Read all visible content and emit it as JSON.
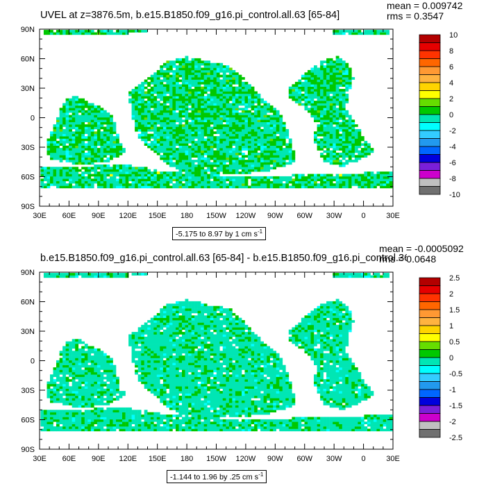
{
  "panels": [
    {
      "title": "UVEL at z=3876.5m, b.e15.B1850.f09_g16.pi_control.all.63 [65-84]",
      "mean_text": "mean = 0.009742",
      "rms_text": "rms = 0.3547",
      "range_text": "-5.175 to 8.97 by 1 cm s",
      "range_exp": "-1"
    },
    {
      "title": "b.e15.B1850.f09_g16.pi_control.all.63 [65-84] - b.e15.B1850.f09_g16.pi_control.36 [65-84]",
      "mean_text": "mean = -0.0005092",
      "rms_text": "rms = 0.0648",
      "range_text": "-1.144 to 1.96 by .25 cm s",
      "range_exp": "-1"
    }
  ],
  "chart_data": [
    {
      "type": "heatmap",
      "x_tick_labels": [
        "30E",
        "60E",
        "90E",
        "120E",
        "150E",
        "180",
        "150W",
        "120W",
        "90W",
        "60W",
        "30W",
        "0",
        "30E"
      ],
      "y_tick_labels": [
        "90N",
        "60N",
        "30N",
        "0",
        "30S",
        "60S",
        "90S"
      ],
      "xlim": [
        30,
        390
      ],
      "ylim": [
        -90,
        90
      ],
      "colorbar_labels": [
        "10",
        "8",
        "6",
        "4",
        "2",
        "0",
        "-2",
        "-4",
        "-6",
        "-8",
        "-10"
      ],
      "colorbar_colors": [
        "#b30000",
        "#e60000",
        "#ff3300",
        "#ff6600",
        "#ff9933",
        "#ffb340",
        "#ffd400",
        "#ffff00",
        "#66dd00",
        "#00c800",
        "#00e6b4",
        "#00ffff",
        "#33ccff",
        "#2299ee",
        "#0066ff",
        "#0000dd",
        "#7a1fd9",
        "#cc00cc",
        "#c0c0c0",
        "#707070"
      ]
    },
    {
      "type": "heatmap",
      "x_tick_labels": [
        "30E",
        "60E",
        "90E",
        "120E",
        "150E",
        "180",
        "150W",
        "120W",
        "90W",
        "60W",
        "30W",
        "0",
        "30E"
      ],
      "y_tick_labels": [
        "90N",
        "60N",
        "30N",
        "0",
        "30S",
        "60S",
        "90S"
      ],
      "xlim": [
        30,
        390
      ],
      "ylim": [
        -90,
        90
      ],
      "colorbar_labels": [
        "2.5",
        "2",
        "1.5",
        "1",
        "0.5",
        "0",
        "-0.5",
        "-1",
        "-1.5",
        "-2",
        "-2.5"
      ],
      "colorbar_colors": [
        "#b30000",
        "#e60000",
        "#ff3300",
        "#ff6600",
        "#ff9933",
        "#ffb340",
        "#ffd400",
        "#ffff00",
        "#66dd00",
        "#00c800",
        "#00e6b4",
        "#00ffff",
        "#33ccff",
        "#2299ee",
        "#0066ff",
        "#0000dd",
        "#7a1fd9",
        "#cc00cc",
        "#c0c0c0",
        "#707070"
      ]
    }
  ]
}
